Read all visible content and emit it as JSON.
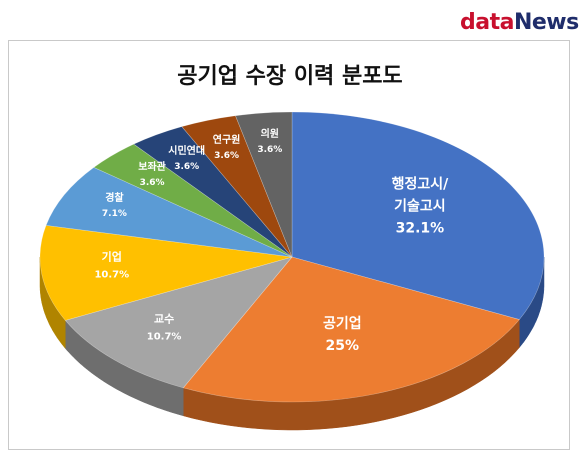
{
  "logo": {
    "part1": "data",
    "part2": "News"
  },
  "chart_data": {
    "type": "pie",
    "title": "공기업 수장 이력 분포도",
    "slices": [
      {
        "label": "행정고시/기술고시",
        "label_lines": [
          "행정고시/",
          "기술고시"
        ],
        "value": 32.1,
        "value_text": "32.1%",
        "color": "#4472c4",
        "side": "#2a4a86"
      },
      {
        "label": "공기업",
        "label_lines": [
          "공기업"
        ],
        "value": 25,
        "value_text": "25%",
        "color": "#ed7d31",
        "side": "#a0501a"
      },
      {
        "label": "교수",
        "label_lines": [
          "교수"
        ],
        "value": 10.7,
        "value_text": "10.7%",
        "color": "#a5a5a5",
        "side": "#6e6e6e"
      },
      {
        "label": "기업",
        "label_lines": [
          "기업"
        ],
        "value": 10.7,
        "value_text": "10.7%",
        "color": "#ffc000",
        "side": "#b08400"
      },
      {
        "label": "경찰",
        "label_lines": [
          "경찰"
        ],
        "value": 7.1,
        "value_text": "7.1%",
        "color": "#5b9bd5",
        "side": "#3a6d9c"
      },
      {
        "label": "보좌관",
        "label_lines": [
          "보좌관"
        ],
        "value": 3.6,
        "value_text": "3.6%",
        "color": "#70ad47",
        "side": "#4a7a2c"
      },
      {
        "label": "시민연대",
        "label_lines": [
          "시민연대"
        ],
        "value": 3.6,
        "value_text": "3.6%",
        "color": "#264478",
        "side": "#15284a"
      },
      {
        "label": "연구원",
        "label_lines": [
          "연구원"
        ],
        "value": 3.6,
        "value_text": "3.6%",
        "color": "#9e480e",
        "side": "#5e2a08"
      },
      {
        "label": "의원",
        "label_lines": [
          "의원"
        ],
        "value": 3.6,
        "value_text": "3.6%",
        "color": "#636363",
        "side": "#3c3c3c"
      }
    ]
  }
}
